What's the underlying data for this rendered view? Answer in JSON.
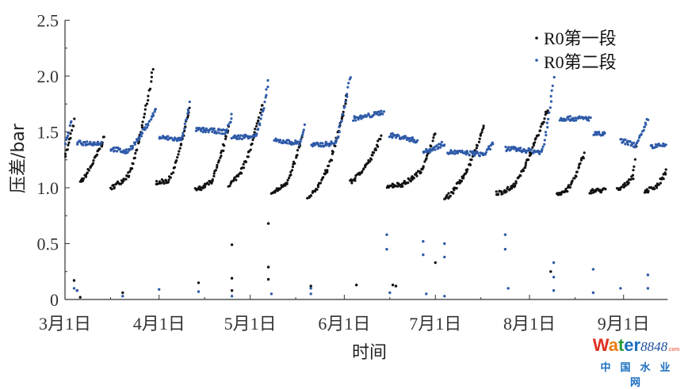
{
  "chart_data": {
    "type": "scatter",
    "title": "",
    "xlabel": "时间",
    "ylabel": "压差/bar",
    "ylim": [
      0,
      2.5
    ],
    "yticks": [
      "0",
      "0.5",
      "1.0",
      "1.5",
      "2.0",
      "2.5"
    ],
    "xticks": [
      "3月1日",
      "4月1日",
      "5月1日",
      "6月1日",
      "7月1日",
      "8月1日",
      "9月1日"
    ],
    "xtick_dates": [
      "03-01",
      "04-01",
      "05-01",
      "06-01",
      "07-01",
      "08-01",
      "09-01"
    ],
    "xlim": [
      "03-01",
      "09-15"
    ],
    "grid": false,
    "legend_position": "top-right",
    "series": [
      {
        "name": "R0第一段",
        "color": "#111111",
        "segments": [
          [
            [
              "03-01",
              1.3
            ],
            [
              "03-04",
              1.6
            ]
          ],
          [
            [
              "03-06",
              1.05
            ],
            [
              "03-14",
              1.45
            ]
          ],
          [
            [
              "03-16",
              1.0
            ],
            [
              "03-22",
              1.12
            ],
            [
              "03-30",
              2.05
            ]
          ],
          [
            [
              "03-31",
              1.05
            ],
            [
              "04-04",
              1.06
            ],
            [
              "04-11",
              1.7
            ]
          ],
          [
            [
              "04-13",
              0.98
            ],
            [
              "04-18",
              1.05
            ],
            [
              "04-24",
              1.55
            ]
          ],
          [
            [
              "04-24",
              1.03
            ],
            [
              "04-28",
              1.15
            ],
            [
              "05-05",
              1.75
            ]
          ],
          [
            [
              "05-08",
              0.95
            ],
            [
              "05-13",
              1.05
            ],
            [
              "05-18",
              1.45
            ]
          ],
          [
            [
              "05-20",
              0.9
            ],
            [
              "05-26",
              1.15
            ],
            [
              "06-02",
              1.85
            ]
          ],
          [
            [
              "06-03",
              1.05
            ],
            [
              "06-08",
              1.2
            ],
            [
              "06-13",
              1.45
            ]
          ],
          [
            [
              "06-15",
              1.02
            ],
            [
              "06-20",
              1.03
            ],
            [
              "06-26",
              1.15
            ],
            [
              "07-01",
              1.5
            ]
          ],
          [
            [
              "07-04",
              0.9
            ],
            [
              "07-09",
              1.05
            ],
            [
              "07-17",
              1.55
            ]
          ],
          [
            [
              "07-21",
              0.95
            ],
            [
              "07-26",
              1.0
            ],
            [
              "08-07",
              1.7
            ]
          ],
          [
            [
              "08-10",
              0.95
            ],
            [
              "08-13",
              0.97
            ],
            [
              "08-19",
              1.3
            ]
          ],
          [
            [
              "08-21",
              0.97
            ],
            [
              "08-26",
              0.98
            ]
          ],
          [
            [
              "08-30",
              0.98
            ],
            [
              "09-04",
              1.1
            ],
            [
              "09-05",
              1.35
            ]
          ],
          [
            [
              "09-08",
              0.97
            ],
            [
              "09-12",
              1.02
            ],
            [
              "09-15",
              1.15
            ]
          ]
        ],
        "outliers": [
          [
            "03-04",
            0.17
          ],
          [
            "03-05",
            0.08
          ],
          [
            "03-06",
            0.02
          ],
          [
            "03-20",
            0.06
          ],
          [
            "04-14",
            0.15
          ],
          [
            "04-25",
            0.49
          ],
          [
            "04-25",
            0.19
          ],
          [
            "04-25",
            0.08
          ],
          [
            "05-07",
            0.68
          ],
          [
            "05-07",
            0.29
          ],
          [
            "05-07",
            0.18
          ],
          [
            "05-21",
            0.12
          ],
          [
            "06-05",
            0.13
          ],
          [
            "06-17",
            0.13
          ],
          [
            "06-18",
            0.12
          ],
          [
            "07-01",
            0.33
          ],
          [
            "08-08",
            0.25
          ]
        ]
      },
      {
        "name": "R0第二段",
        "color": "#2e5aa8",
        "segments": [
          [
            [
              "03-01",
              1.4
            ],
            [
              "03-03",
              1.6
            ]
          ],
          [
            [
              "03-05",
              1.4
            ],
            [
              "03-13",
              1.4
            ]
          ],
          [
            [
              "03-16",
              1.35
            ],
            [
              "03-21",
              1.32
            ],
            [
              "03-31",
              1.7
            ]
          ],
          [
            [
              "04-01",
              1.45
            ],
            [
              "04-08",
              1.43
            ],
            [
              "04-11",
              1.75
            ]
          ],
          [
            [
              "04-13",
              1.52
            ],
            [
              "04-23",
              1.5
            ],
            [
              "04-25",
              1.65
            ]
          ],
          [
            [
              "04-25",
              1.45
            ],
            [
              "05-03",
              1.47
            ],
            [
              "05-07",
              1.95
            ]
          ],
          [
            [
              "05-09",
              1.42
            ],
            [
              "05-17",
              1.4
            ],
            [
              "05-19",
              1.55
            ]
          ],
          [
            [
              "05-21",
              1.38
            ],
            [
              "05-29",
              1.4
            ],
            [
              "06-03",
              2.0
            ]
          ],
          [
            [
              "06-04",
              1.62
            ],
            [
              "06-14",
              1.68
            ]
          ],
          [
            [
              "06-16",
              1.47
            ],
            [
              "06-25",
              1.42
            ]
          ],
          [
            [
              "06-27",
              1.32
            ],
            [
              "07-04",
              1.4
            ]
          ],
          [
            [
              "07-05",
              1.32
            ],
            [
              "07-17",
              1.3
            ],
            [
              "07-20",
              1.4
            ]
          ],
          [
            [
              "07-24",
              1.35
            ],
            [
              "08-05",
              1.32
            ],
            [
              "08-09",
              1.98
            ]
          ],
          [
            [
              "08-11",
              1.62
            ],
            [
              "08-21",
              1.62
            ]
          ],
          [
            [
              "08-22",
              1.48
            ],
            [
              "08-26",
              1.48
            ]
          ],
          [
            [
              "08-31",
              1.42
            ],
            [
              "09-05",
              1.38
            ],
            [
              "09-09",
              1.62
            ]
          ],
          [
            [
              "09-10",
              1.37
            ],
            [
              "09-15",
              1.38
            ]
          ]
        ],
        "outliers": [
          [
            "03-04",
            0.1
          ],
          [
            "03-05",
            0.08
          ],
          [
            "03-20",
            0.03
          ],
          [
            "04-01",
            0.09
          ],
          [
            "04-14",
            0.07
          ],
          [
            "04-25",
            0.03
          ],
          [
            "05-08",
            0.05
          ],
          [
            "05-21",
            0.1
          ],
          [
            "05-21",
            0.05
          ],
          [
            "06-15",
            0.58
          ],
          [
            "06-15",
            0.45
          ],
          [
            "06-16",
            0.06
          ],
          [
            "06-27",
            0.52
          ],
          [
            "06-27",
            0.4
          ],
          [
            "06-28",
            0.05
          ],
          [
            "07-04",
            0.5
          ],
          [
            "07-04",
            0.38
          ],
          [
            "07-04",
            0.03
          ],
          [
            "07-24",
            0.58
          ],
          [
            "07-24",
            0.45
          ],
          [
            "07-25",
            0.1
          ],
          [
            "08-09",
            0.33
          ],
          [
            "08-09",
            0.2
          ],
          [
            "08-09",
            0.08
          ],
          [
            "08-22",
            0.27
          ],
          [
            "08-22",
            0.06
          ],
          [
            "08-31",
            0.1
          ],
          [
            "09-09",
            0.22
          ],
          [
            "09-09",
            0.1
          ]
        ]
      }
    ]
  },
  "watermark": {
    "brand": "Water",
    "number": "8848",
    "suffix": ".com",
    "subtitle": "中 国 水 业 网"
  }
}
